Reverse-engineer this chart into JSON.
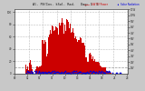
{
  "title": "Al. PV/Inv. kSol. Rad.   Dag: 1  1",
  "legend_pv": "kW PV Power",
  "legend_rad": "Solar Radiation",
  "bg_color": "#c8c8c8",
  "plot_bg": "#ffffff",
  "grid_color": "#aaaaaa",
  "pv_color": "#cc0000",
  "rad_color": "#0000dd",
  "title_color": "#000000",
  "ylim": [
    0,
    105
  ],
  "xlim": [
    0,
    143
  ],
  "num_points": 144,
  "right_yticks": [
    "1W",
    "2W",
    "3W",
    "4W",
    "5W",
    "6W",
    "7W",
    "8W",
    "9W",
    "10W",
    "11W"
  ],
  "right_ytick_vals": [
    9.5,
    19,
    28.5,
    38,
    47.5,
    57,
    66.5,
    76,
    85.5,
    95,
    104.5
  ]
}
